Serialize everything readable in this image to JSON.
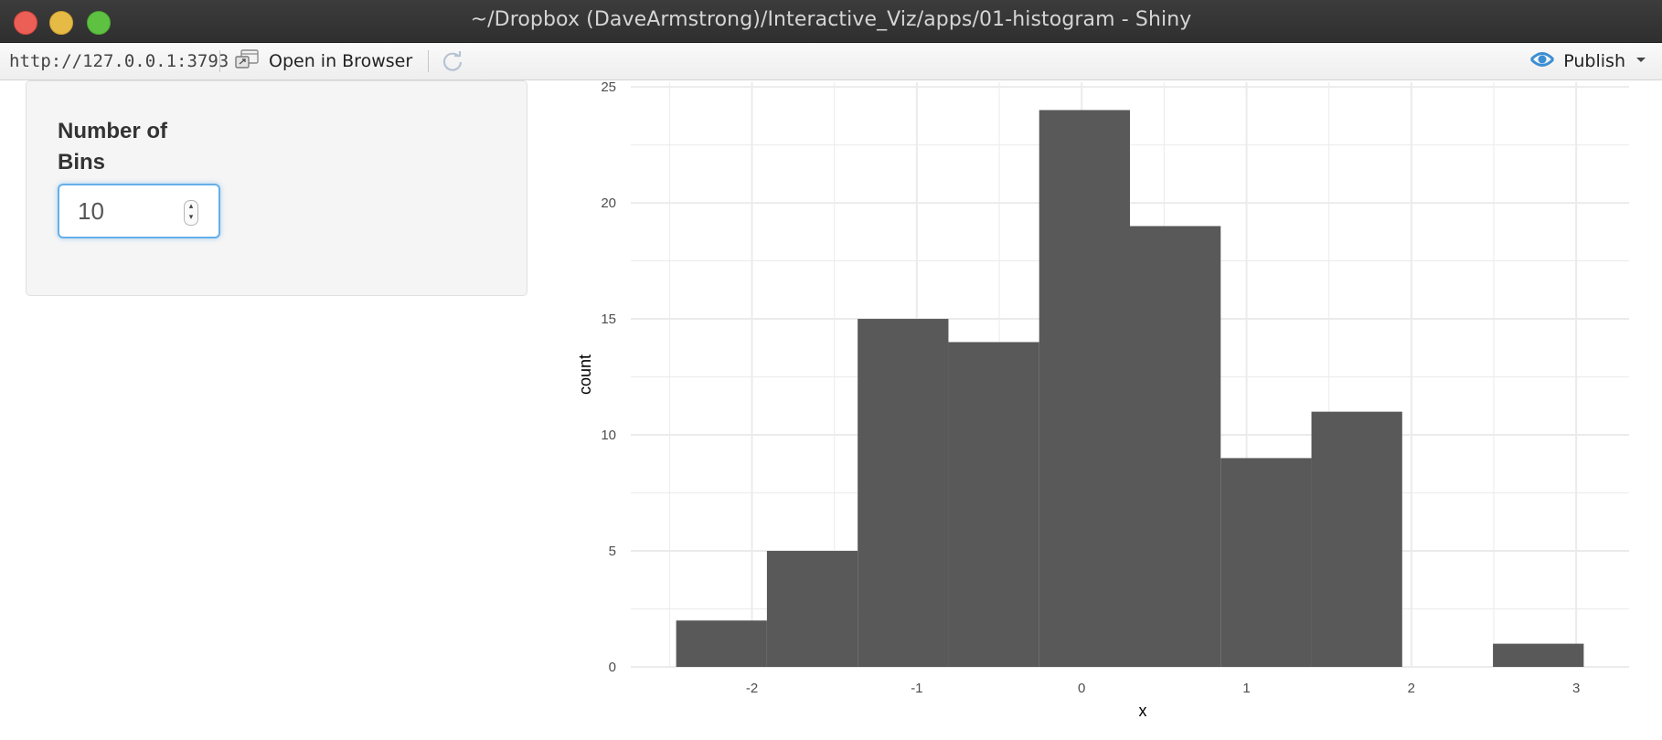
{
  "window": {
    "title": "~/Dropbox (DaveArmstrong)/Interactive_Viz/apps/01-histogram - Shiny"
  },
  "toolbar": {
    "url": "http://127.0.0.1:3793",
    "open_in_browser_label": "Open in Browser",
    "publish_label": "Publish",
    "icons": [
      "open-in-browser-icon",
      "refresh-icon",
      "publish-icon",
      "chevron-down-icon"
    ],
    "publish_icon_color": "#3c8ed3"
  },
  "sidebar": {
    "bins_label": "Number of Bins",
    "bins_value": "10"
  },
  "chart_data": {
    "type": "bar",
    "title": "",
    "xlabel": "x",
    "ylabel": "count",
    "bin_width": 0.5505,
    "bins": [
      {
        "x_start": -2.4598,
        "x_end": -1.9093,
        "count": 2
      },
      {
        "x_start": -1.9093,
        "x_end": -1.3588,
        "count": 5
      },
      {
        "x_start": -1.3588,
        "x_end": -0.8082,
        "count": 15
      },
      {
        "x_start": -0.8082,
        "x_end": -0.2577,
        "count": 14
      },
      {
        "x_start": -0.2577,
        "x_end": 0.2928,
        "count": 24
      },
      {
        "x_start": 0.2928,
        "x_end": 0.8433,
        "count": 19
      },
      {
        "x_start": 0.8433,
        "x_end": 1.3938,
        "count": 9
      },
      {
        "x_start": 1.3938,
        "x_end": 1.9443,
        "count": 11
      },
      {
        "x_start": 1.9443,
        "x_end": 2.4948,
        "count": 0
      },
      {
        "x_start": 2.4948,
        "x_end": 3.0454,
        "count": 1
      }
    ],
    "x_ticks": [
      "-2",
      "-1",
      "0",
      "1",
      "2",
      "3"
    ],
    "y_ticks": [
      "0",
      "5",
      "10",
      "15",
      "20",
      "25"
    ],
    "xlim": [
      -2.735,
      3.3206
    ],
    "ylim": [
      0,
      25.2
    ],
    "grid": true,
    "bar_color": "#595959",
    "grid_color": "#ebebeb"
  }
}
